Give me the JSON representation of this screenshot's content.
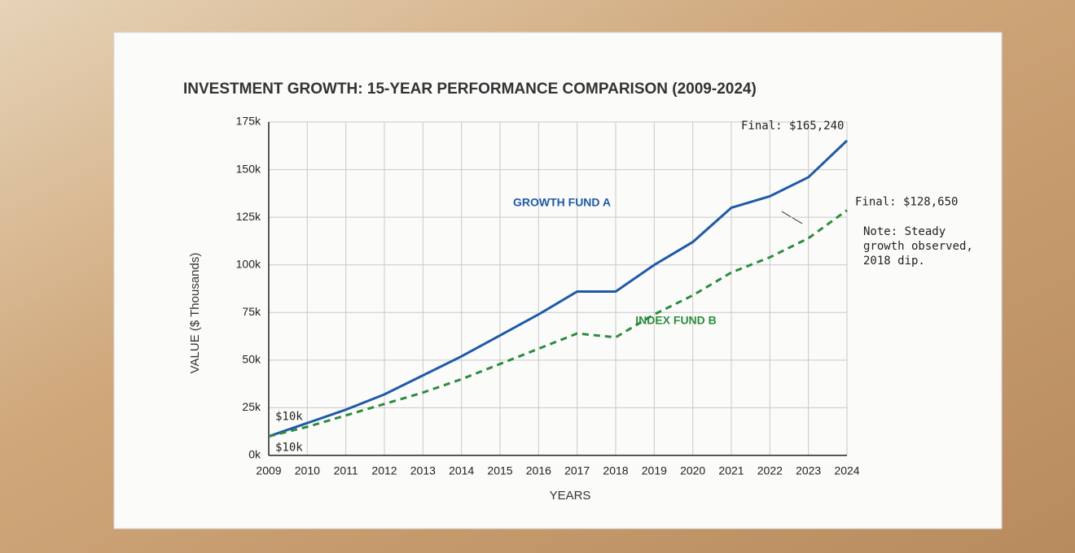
{
  "chart_data": {
    "type": "line",
    "title": "INVESTMENT GROWTH: 15-YEAR PERFORMANCE COMPARISON (2009-2024)",
    "x_label": "YEARS",
    "y_label": "VALUE ($ Thousands)",
    "x": [
      2009,
      2010,
      2011,
      2012,
      2013,
      2014,
      2015,
      2016,
      2017,
      2018,
      2019,
      2020,
      2021,
      2022,
      2023,
      2024
    ],
    "xlim": [
      2009,
      2024
    ],
    "xticks": [
      2009,
      2010,
      2011,
      2012,
      2013,
      2014,
      2015,
      2016,
      2017,
      2018,
      2019,
      2020,
      2021,
      2022,
      2023,
      2024
    ],
    "ylim": [
      0,
      175
    ],
    "yticks": [
      {
        "value": 0,
        "label": "0k"
      },
      {
        "value": 25,
        "label": "25k"
      },
      {
        "value": 50,
        "label": "50k"
      },
      {
        "value": 75,
        "label": "75k"
      },
      {
        "value": 100,
        "label": "100k"
      },
      {
        "value": 125,
        "label": "125k"
      },
      {
        "value": 150,
        "label": "150k"
      },
      {
        "value": 175,
        "label": "175k"
      }
    ],
    "grid": true,
    "series": [
      {
        "name": "GROWTH FUND A",
        "color": "#1f5aa6",
        "dash": false,
        "values": [
          10,
          17,
          24,
          32,
          42,
          52,
          63,
          74,
          86,
          86,
          100,
          112,
          130,
          136,
          146,
          165.24
        ]
      },
      {
        "name": "INDEX FUND B",
        "color": "#2e8b3e",
        "dash": true,
        "values": [
          10,
          15,
          21,
          27,
          33,
          40,
          48,
          56,
          64,
          62,
          74,
          84,
          96,
          104,
          114,
          128.65
        ]
      }
    ],
    "annotations": [
      "$10k",
      "$10k",
      "Final: $165,240",
      "Final: $128,650",
      "Note: Steady growth observed, 2018 dip."
    ]
  }
}
